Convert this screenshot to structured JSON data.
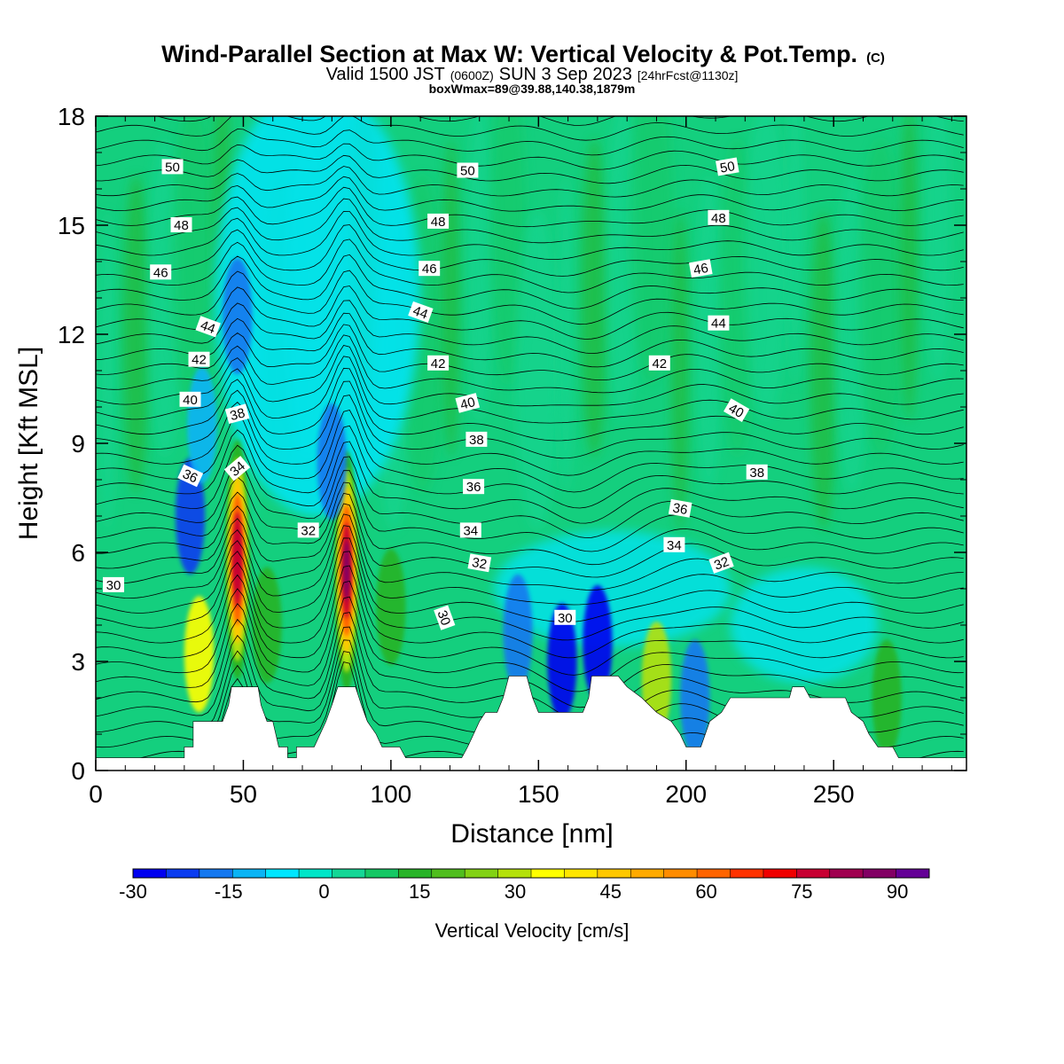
{
  "header": {
    "title": "Wind-Parallel Section at Max W: Vertical Velocity & Pot.Temp.",
    "copyright": "(C)",
    "valid_prefix": "Valid 1500 JST",
    "valid_z": "(0600Z)",
    "valid_date": "SUN 3 Sep 2023",
    "valid_fcst": "[24hrFcst@1130z]",
    "boxwmax": "boxWmax=89@39.88,140.38,1879m"
  },
  "colors": {
    "background_field": "#14cf7e",
    "terrain": "#ffffff",
    "contour": "#000000"
  },
  "chart_data": {
    "type": "heatmap",
    "xlabel": "Distance [nm]",
    "ylabel": "Height [Kft MSL]",
    "xlim": [
      0,
      295
    ],
    "ylim": [
      0,
      18
    ],
    "x_ticks": [
      "0",
      "50",
      "100",
      "150",
      "200",
      "250"
    ],
    "x_tick_values": [
      0,
      50,
      100,
      150,
      200,
      250
    ],
    "y_ticks": [
      "0",
      "3",
      "6",
      "9",
      "12",
      "15",
      "18"
    ],
    "y_tick_values": [
      0,
      3,
      6,
      9,
      12,
      15,
      18
    ],
    "colorbar": {
      "label": "Vertical Velocity [cm/s]",
      "min": -30,
      "max": 95,
      "tick_labels": [
        "-30",
        "-15",
        "0",
        "15",
        "30",
        "45",
        "60",
        "75",
        "90"
      ],
      "tick_values": [
        -30,
        -15,
        0,
        15,
        30,
        45,
        60,
        75,
        90
      ],
      "colors": [
        "#0000f0",
        "#0a3cf0",
        "#1478f0",
        "#0ab4f5",
        "#00e6ff",
        "#00e6c8",
        "#14d796",
        "#14c864",
        "#28b428",
        "#50be1e",
        "#82d214",
        "#b4e10a",
        "#ffff00",
        "#ffe600",
        "#ffc800",
        "#ffaa00",
        "#ff8c00",
        "#ff6400",
        "#ff3200",
        "#f00000",
        "#c80032",
        "#a00050",
        "#820064",
        "#640096"
      ]
    },
    "velocity_features": [
      {
        "x": 32,
        "y": 7.0,
        "value": -22
      },
      {
        "x": 36,
        "y": 9.5,
        "value": -12
      },
      {
        "x": 48,
        "y": 12.5,
        "value": -15
      },
      {
        "x": 48,
        "y": 5.8,
        "value": 75
      },
      {
        "x": 35,
        "y": 3.2,
        "value": 35
      },
      {
        "x": 85,
        "y": 5.5,
        "value": 89
      },
      {
        "x": 58,
        "y": 4.0,
        "value": 15
      },
      {
        "x": 80,
        "y": 8.5,
        "value": -15
      },
      {
        "x": 100,
        "y": 4.5,
        "value": 15
      },
      {
        "x": 143,
        "y": 3.8,
        "value": -15
      },
      {
        "x": 158,
        "y": 3.0,
        "value": -25
      },
      {
        "x": 170,
        "y": 3.5,
        "value": -25
      },
      {
        "x": 190,
        "y": 2.5,
        "value": 30
      },
      {
        "x": 203,
        "y": 2.0,
        "value": -18
      },
      {
        "x": 268,
        "y": 2.0,
        "value": 15
      }
    ],
    "terrain_kft": [
      [
        0,
        0.35
      ],
      [
        30,
        0.35
      ],
      [
        30,
        0.65
      ],
      [
        33,
        0.65
      ],
      [
        33,
        1.35
      ],
      [
        43,
        1.35
      ],
      [
        45,
        1.8
      ],
      [
        46,
        2.3
      ],
      [
        55,
        2.3
      ],
      [
        56,
        1.8
      ],
      [
        58,
        1.35
      ],
      [
        60,
        1.35
      ],
      [
        62,
        0.65
      ],
      [
        65,
        0.65
      ],
      [
        65,
        0.35
      ],
      [
        68,
        0.35
      ],
      [
        68,
        0.65
      ],
      [
        74,
        0.65
      ],
      [
        76,
        1.0
      ],
      [
        78,
        1.35
      ],
      [
        80,
        1.8
      ],
      [
        82,
        2.3
      ],
      [
        88,
        2.3
      ],
      [
        90,
        1.8
      ],
      [
        92,
        1.35
      ],
      [
        95,
        1.0
      ],
      [
        97,
        0.65
      ],
      [
        103,
        0.65
      ],
      [
        105,
        0.35
      ],
      [
        124,
        0.35
      ],
      [
        126,
        0.65
      ],
      [
        128,
        1.0
      ],
      [
        130,
        1.35
      ],
      [
        132,
        1.6
      ],
      [
        136,
        1.6
      ],
      [
        138,
        2.0
      ],
      [
        140,
        2.6
      ],
      [
        146,
        2.6
      ],
      [
        148,
        2.0
      ],
      [
        150,
        1.6
      ],
      [
        165,
        1.6
      ],
      [
        167,
        2.0
      ],
      [
        168,
        2.6
      ],
      [
        177,
        2.6
      ],
      [
        180,
        2.3
      ],
      [
        185,
        2.0
      ],
      [
        190,
        1.6
      ],
      [
        195,
        1.35
      ],
      [
        198,
        1.0
      ],
      [
        200,
        0.65
      ],
      [
        205,
        0.65
      ],
      [
        208,
        1.35
      ],
      [
        212,
        1.6
      ],
      [
        215,
        2.0
      ],
      [
        235,
        2.0
      ],
      [
        236,
        2.3
      ],
      [
        240,
        2.3
      ],
      [
        242,
        2.0
      ],
      [
        254,
        2.0
      ],
      [
        256,
        1.6
      ],
      [
        260,
        1.35
      ],
      [
        262,
        1.0
      ],
      [
        265,
        0.65
      ],
      [
        270,
        0.65
      ],
      [
        272,
        0.35
      ],
      [
        295,
        0.35
      ]
    ],
    "contour_labels": [
      {
        "text": "50",
        "x": 26,
        "y": 16.6,
        "angle": 0
      },
      {
        "text": "48",
        "x": 29,
        "y": 15.0,
        "angle": 0
      },
      {
        "text": "46",
        "x": 22,
        "y": 13.7,
        "angle": 0
      },
      {
        "text": "44",
        "x": 38,
        "y": 12.2,
        "angle": 20
      },
      {
        "text": "42",
        "x": 35,
        "y": 11.3,
        "angle": 0
      },
      {
        "text": "40",
        "x": 32,
        "y": 10.2,
        "angle": 0
      },
      {
        "text": "38",
        "x": 48,
        "y": 9.8,
        "angle": -15
      },
      {
        "text": "36",
        "x": 32,
        "y": 8.1,
        "angle": 25
      },
      {
        "text": "34",
        "x": 48,
        "y": 8.3,
        "angle": -40
      },
      {
        "text": "32",
        "x": 72,
        "y": 6.6,
        "angle": 0
      },
      {
        "text": "30",
        "x": 6,
        "y": 5.1,
        "angle": 0
      },
      {
        "text": "50",
        "x": 126,
        "y": 16.5,
        "angle": 0
      },
      {
        "text": "48",
        "x": 116,
        "y": 15.1,
        "angle": 0
      },
      {
        "text": "46",
        "x": 113,
        "y": 13.8,
        "angle": 0
      },
      {
        "text": "44",
        "x": 110,
        "y": 12.6,
        "angle": 20
      },
      {
        "text": "42",
        "x": 116,
        "y": 11.2,
        "angle": 0
      },
      {
        "text": "40",
        "x": 126,
        "y": 10.1,
        "angle": -15
      },
      {
        "text": "38",
        "x": 129,
        "y": 9.1,
        "angle": 0
      },
      {
        "text": "36",
        "x": 128,
        "y": 7.8,
        "angle": 0
      },
      {
        "text": "34",
        "x": 127,
        "y": 6.6,
        "angle": 0
      },
      {
        "text": "32",
        "x": 130,
        "y": 5.7,
        "angle": 10
      },
      {
        "text": "30",
        "x": 118,
        "y": 4.2,
        "angle": 70
      },
      {
        "text": "30",
        "x": 159,
        "y": 4.2,
        "angle": 0
      },
      {
        "text": "50",
        "x": 214,
        "y": 16.6,
        "angle": -10
      },
      {
        "text": "48",
        "x": 211,
        "y": 15.2,
        "angle": 0
      },
      {
        "text": "46",
        "x": 205,
        "y": 13.8,
        "angle": -10
      },
      {
        "text": "44",
        "x": 211,
        "y": 12.3,
        "angle": 0
      },
      {
        "text": "42",
        "x": 191,
        "y": 11.2,
        "angle": 0
      },
      {
        "text": "40",
        "x": 217,
        "y": 9.9,
        "angle": 30
      },
      {
        "text": "38",
        "x": 224,
        "y": 8.2,
        "angle": 0
      },
      {
        "text": "36",
        "x": 198,
        "y": 7.2,
        "angle": 10
      },
      {
        "text": "34",
        "x": 196,
        "y": 6.2,
        "angle": 0
      },
      {
        "text": "32",
        "x": 212,
        "y": 5.7,
        "angle": -20
      }
    ],
    "contour_levels": [
      30,
      32,
      34,
      36,
      38,
      40,
      42,
      44,
      46,
      48,
      50
    ]
  }
}
